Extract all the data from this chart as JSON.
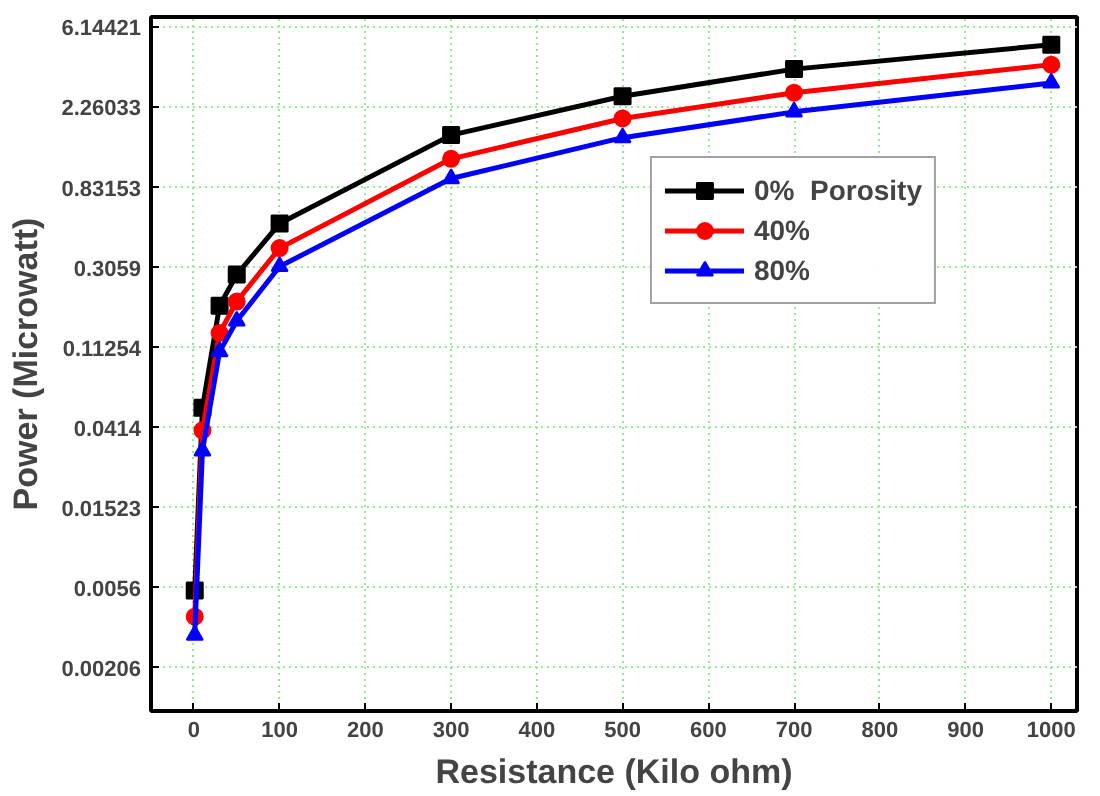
{
  "chart_data": {
    "type": "line",
    "xlabel": "Resistance (Kilo ohm)",
    "ylabel": "Power (Microwatt)",
    "x": [
      1,
      10,
      30,
      50,
      100,
      300,
      500,
      700,
      1000
    ],
    "series": [
      {
        "name": "0%  Porosity",
        "color": "#000000",
        "marker": "square",
        "values": [
          0.0054,
          0.053,
          0.19,
          0.28,
          0.53,
          1.6,
          2.6,
          3.65,
          4.95
        ]
      },
      {
        "name": "40%",
        "color": "#ff0000",
        "marker": "circle",
        "values": [
          0.0039,
          0.04,
          0.135,
          0.2,
          0.39,
          1.19,
          1.97,
          2.72,
          3.86
        ]
      },
      {
        "name": "80%",
        "color": "#0000ff",
        "marker": "triangle",
        "values": [
          0.0031,
          0.031,
          0.107,
          0.157,
          0.31,
          0.93,
          1.55,
          2.14,
          3.07
        ]
      }
    ],
    "log": "y",
    "xlim": [
      -50,
      1030
    ],
    "ylim": [
      0.0012,
      7.0
    ],
    "xticks": [
      0,
      100,
      200,
      300,
      400,
      500,
      600,
      700,
      800,
      900,
      1000
    ],
    "yticks": [
      0.00206,
      0.0056,
      0.01523,
      0.0414,
      0.11254,
      0.3059,
      0.83153,
      2.26033,
      6.14421
    ],
    "grid": true,
    "legend": "top right",
    "line_style": "solid"
  }
}
